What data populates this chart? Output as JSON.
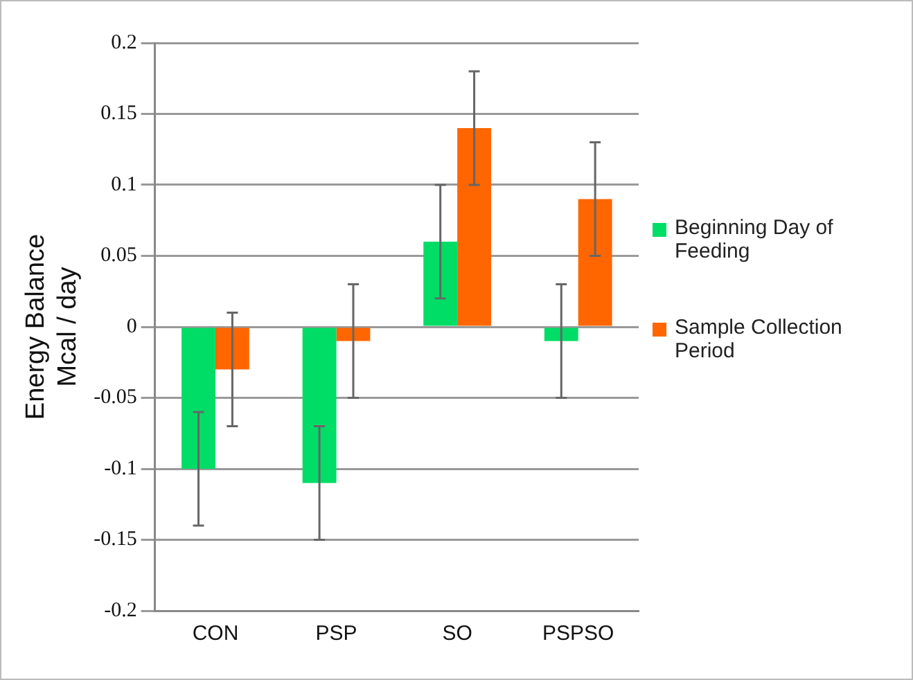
{
  "chart_data": {
    "type": "bar",
    "ylabel": "Energy Balance\nMcal / day",
    "categories": [
      "CON",
      "PSP",
      "SO",
      "PSPSO"
    ],
    "series": [
      {
        "name": "Beginning Day of Feeding",
        "color": "#00dd66",
        "values": [
          -0.1,
          -0.11,
          0.06,
          -0.01
        ],
        "errors": [
          0.04,
          0.04,
          0.04,
          0.04
        ]
      },
      {
        "name": "Sample Collection Period",
        "color": "#ff6600",
        "values": [
          -0.03,
          -0.01,
          0.14,
          0.09
        ],
        "errors": [
          0.04,
          0.04,
          0.04,
          0.04
        ]
      }
    ],
    "ylim": [
      -0.2,
      0.2
    ],
    "yticks": [
      -0.2,
      -0.15,
      -0.1,
      -0.05,
      0,
      0.05,
      0.1,
      0.15,
      0.2
    ],
    "grid": "y",
    "legend": "right"
  }
}
